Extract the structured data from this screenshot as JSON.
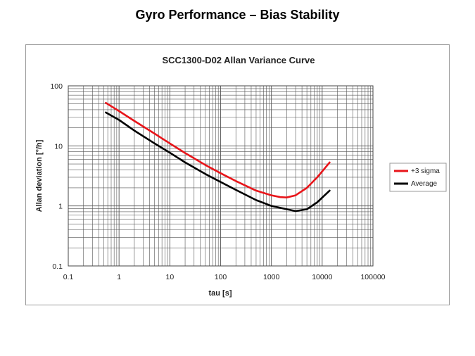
{
  "page": {
    "title": "Gyro Performance – Bias Stability"
  },
  "chart_data": {
    "type": "line",
    "title": "SCC1300-D02 Allan Variance Curve",
    "xlabel": "tau [s]",
    "ylabel": "Allan deviation [°/h]",
    "xscale": "log",
    "yscale": "log",
    "xlim": [
      0.1,
      100000
    ],
    "ylim": [
      0.1,
      100
    ],
    "x_ticks": [
      "0.1",
      "1",
      "10",
      "100",
      "1000",
      "10000",
      "100000"
    ],
    "y_ticks": [
      "100",
      "10",
      "1",
      "0.1"
    ],
    "grid": true,
    "legend": "right",
    "series": [
      {
        "name": "+3 sigma",
        "color": "#e8151a",
        "points": [
          [
            0.55,
            52
          ],
          [
            1,
            38
          ],
          [
            2,
            26
          ],
          [
            5,
            16
          ],
          [
            10,
            11
          ],
          [
            20,
            7.6
          ],
          [
            50,
            4.8
          ],
          [
            100,
            3.5
          ],
          [
            200,
            2.6
          ],
          [
            500,
            1.8
          ],
          [
            1000,
            1.5
          ],
          [
            1500,
            1.4
          ],
          [
            2000,
            1.38
          ],
          [
            3000,
            1.5
          ],
          [
            5000,
            2.0
          ],
          [
            8000,
            3.0
          ],
          [
            14000,
            5.3
          ]
        ]
      },
      {
        "name": "Average",
        "color": "#000000",
        "points": [
          [
            0.55,
            36
          ],
          [
            1,
            27
          ],
          [
            2,
            18
          ],
          [
            5,
            11
          ],
          [
            10,
            7.7
          ],
          [
            20,
            5.3
          ],
          [
            50,
            3.4
          ],
          [
            100,
            2.5
          ],
          [
            200,
            1.85
          ],
          [
            500,
            1.25
          ],
          [
            1000,
            1.0
          ],
          [
            2000,
            0.88
          ],
          [
            3000,
            0.82
          ],
          [
            5000,
            0.88
          ],
          [
            8000,
            1.15
          ],
          [
            14000,
            1.8
          ]
        ]
      }
    ]
  }
}
